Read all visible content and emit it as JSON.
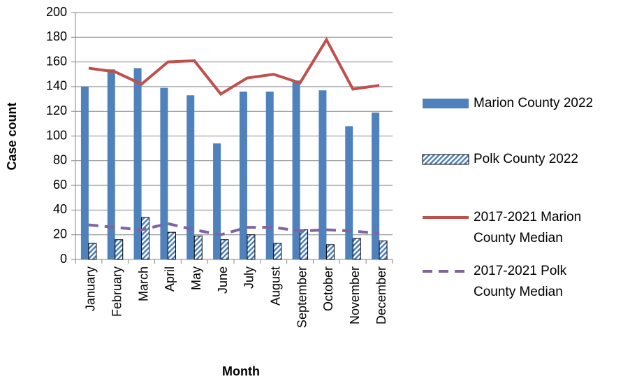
{
  "chart_data": {
    "type": "bar",
    "xlabel": "Month",
    "ylabel": "Case count",
    "categories": [
      "January",
      "February",
      "March",
      "April",
      "May",
      "June",
      "July",
      "August",
      "September",
      "October",
      "November",
      "December"
    ],
    "series": [
      {
        "name": "Marion County 2022",
        "type": "bar",
        "color": "#4f81bd",
        "fill": "solid",
        "values": [
          140,
          154,
          155,
          139,
          133,
          94,
          136,
          136,
          145,
          137,
          108,
          119
        ]
      },
      {
        "name": "Polk County 2022",
        "type": "bar",
        "color": "#4f81bd",
        "fill": "hatched",
        "values": [
          13,
          16,
          34,
          22,
          19,
          16,
          20,
          13,
          24,
          12,
          17,
          15
        ]
      },
      {
        "name": "2017-2021 Marion County Median",
        "type": "line",
        "color": "#c0504d",
        "style": "solid",
        "values": [
          155,
          152,
          142,
          160,
          161,
          134,
          147,
          150,
          143,
          178,
          138,
          141
        ]
      },
      {
        "name": "2017-2021 Polk County Median",
        "type": "line",
        "color": "#8064a2",
        "style": "dashed",
        "values": [
          28,
          26,
          24,
          29,
          24,
          20,
          26,
          26,
          23,
          24,
          23,
          21
        ]
      }
    ],
    "ylim": [
      0,
      200
    ],
    "yticks": [
      0,
      20,
      40,
      60,
      80,
      100,
      120,
      140,
      160,
      180,
      200
    ],
    "grid": true,
    "legend": "right"
  }
}
